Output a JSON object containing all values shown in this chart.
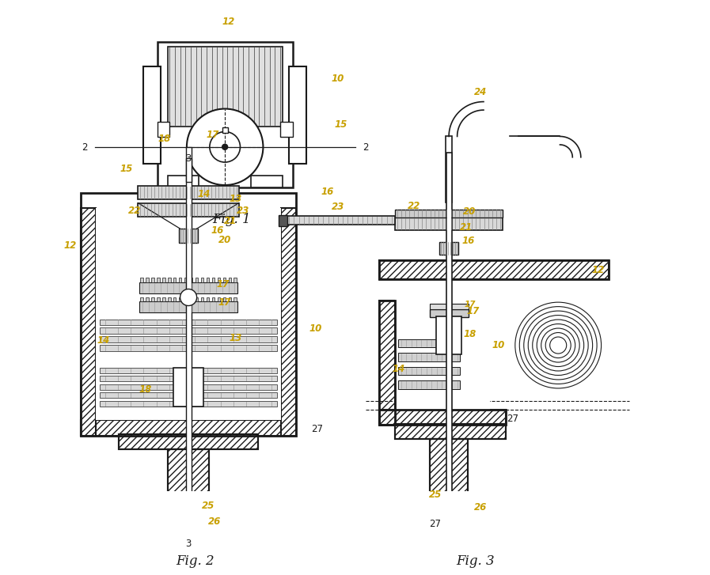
{
  "bg": "#ffffff",
  "lc": "#1a1a1a",
  "lbl": "#c8a000",
  "lfs": 8.5,
  "tfs": 12,
  "fig1_title": "Fig. 1",
  "fig2_title": "Fig. 2",
  "fig3_title": "Fig. 3"
}
